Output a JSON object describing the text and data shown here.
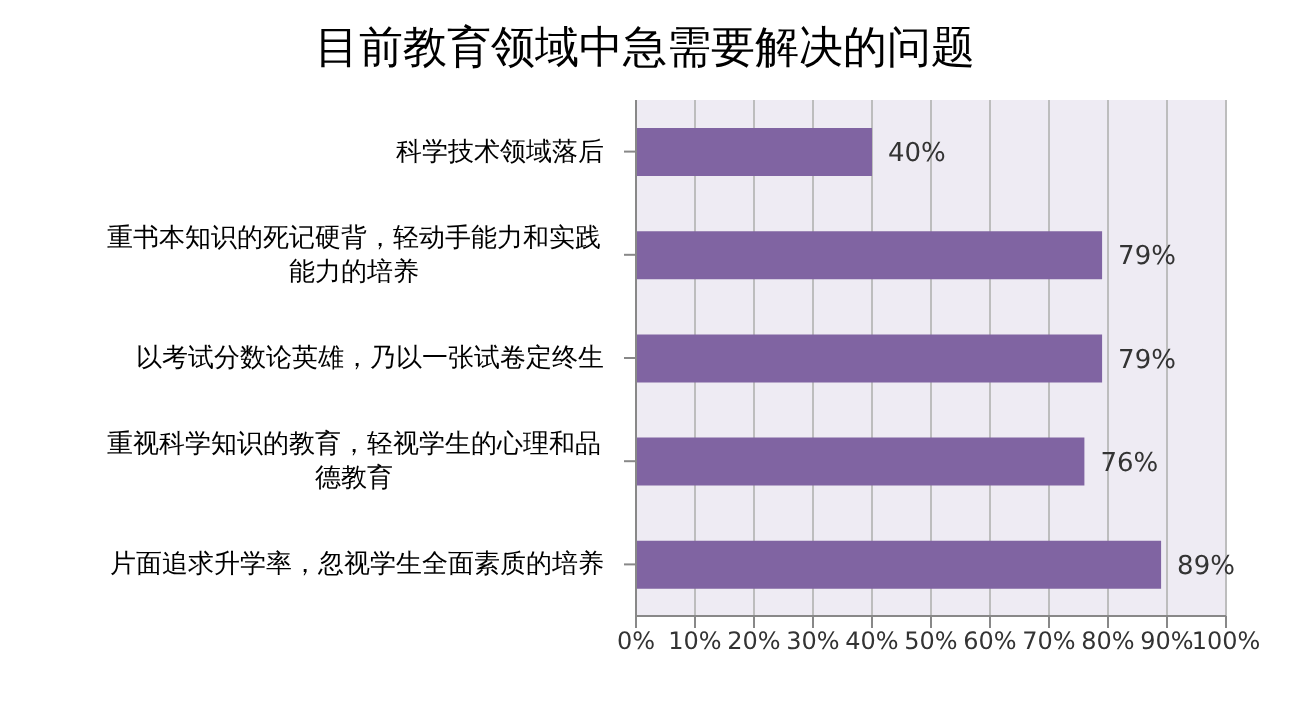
{
  "chart_data": {
    "type": "bar",
    "orientation": "horizontal",
    "title": "目前教育领域中急需要解决的问题",
    "categories": [
      "科学技术领域落后",
      "重书本知识的死记硬背，轻动手能力和实践能力的培养",
      "以考试分数论英雄，乃以一张试卷定终生",
      "重视科学知识的教育，轻视学生的心理和品德教育",
      "片面追求升学率，忽视学生全面素质的培养"
    ],
    "values": [
      40,
      79,
      79,
      76,
      89
    ],
    "value_labels": [
      "40%",
      "79%",
      "79%",
      "76%",
      "89%"
    ],
    "color": "#8064a2",
    "xlim": [
      0,
      100
    ],
    "xticks": [
      {
        "value": 0,
        "label": "0%"
      },
      {
        "value": 10,
        "label": "10%"
      },
      {
        "value": 20,
        "label": "20%"
      },
      {
        "value": 30,
        "label": "30%"
      },
      {
        "value": 40,
        "label": "40%"
      },
      {
        "value": 50,
        "label": "50%"
      },
      {
        "value": 60,
        "label": "60%"
      },
      {
        "value": 70,
        "label": "70%"
      },
      {
        "value": 80,
        "label": "80%"
      },
      {
        "value": 90,
        "label": "90%"
      },
      {
        "value": 100,
        "label": "100%"
      }
    ],
    "grid": "x"
  }
}
